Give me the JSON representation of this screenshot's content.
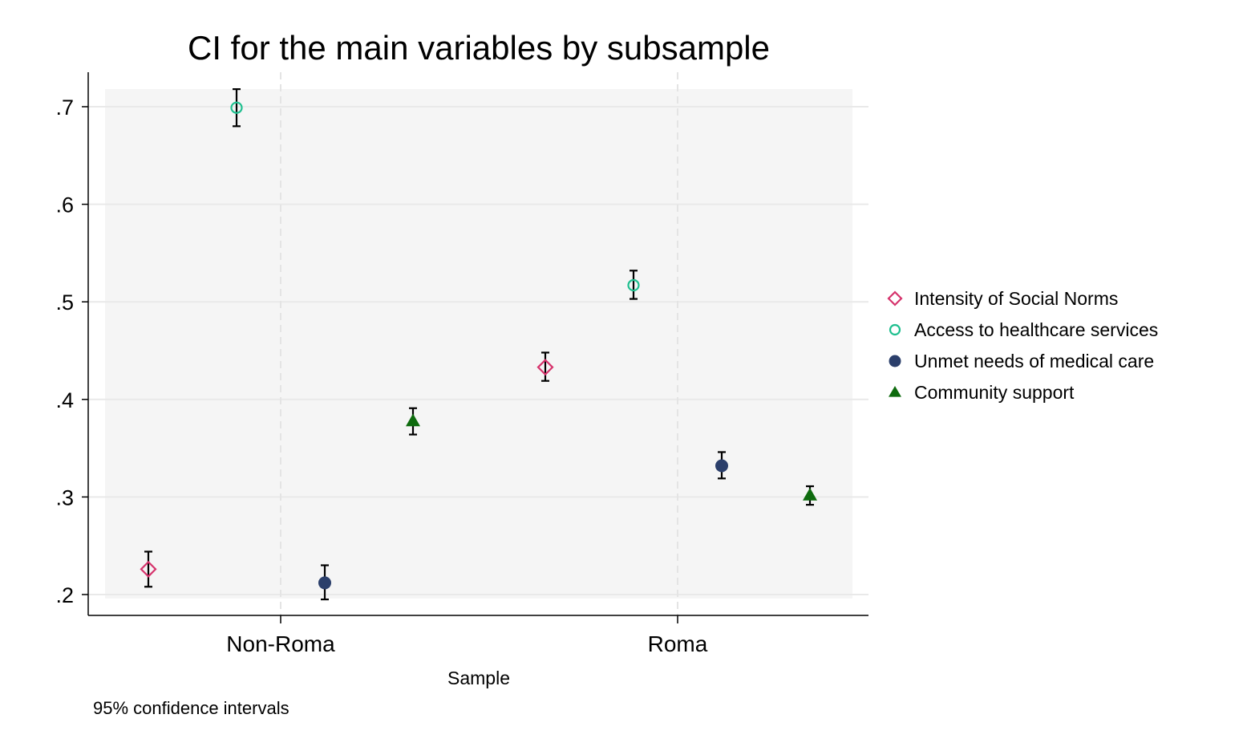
{
  "chart_data": {
    "type": "scatter",
    "title": "CI for the main variables by subsample",
    "xlabel": "Sample",
    "ylabel": "",
    "note": "95% confidence intervals",
    "categories": [
      "Non-Roma",
      "Roma"
    ],
    "yticks": [
      ".2",
      ".3",
      ".4",
      ".5",
      ".6",
      ".7"
    ],
    "ytick_values": [
      0.2,
      0.3,
      0.4,
      0.5,
      0.6,
      0.7
    ],
    "ylim": [
      0.193,
      0.72
    ],
    "grid": true,
    "legend_position": "right",
    "series": [
      {
        "name": "Intensity of Social Norms",
        "marker": "hollow-diamond",
        "color": "#d6336c",
        "points": [
          {
            "category": "Non-Roma",
            "value": 0.226,
            "lower": 0.208,
            "upper": 0.244
          },
          {
            "category": "Roma",
            "value": 0.433,
            "lower": 0.419,
            "upper": 0.448
          }
        ]
      },
      {
        "name": "Access to healthcare services",
        "marker": "hollow-circle",
        "color": "#1fbf8f",
        "points": [
          {
            "category": "Non-Roma",
            "value": 0.699,
            "lower": 0.68,
            "upper": 0.718
          },
          {
            "category": "Roma",
            "value": 0.517,
            "lower": 0.503,
            "upper": 0.532
          }
        ]
      },
      {
        "name": "Unmet needs of medical care",
        "marker": "filled-circle",
        "color": "#2b3f6b",
        "points": [
          {
            "category": "Non-Roma",
            "value": 0.212,
            "lower": 0.195,
            "upper": 0.23
          },
          {
            "category": "Roma",
            "value": 0.332,
            "lower": 0.319,
            "upper": 0.346
          }
        ]
      },
      {
        "name": "Community support",
        "marker": "filled-triangle",
        "color": "#0e6b0e",
        "points": [
          {
            "category": "Non-Roma",
            "value": 0.378,
            "lower": 0.364,
            "upper": 0.391
          },
          {
            "category": "Roma",
            "value": 0.302,
            "lower": 0.292,
            "upper": 0.311
          }
        ]
      }
    ]
  }
}
